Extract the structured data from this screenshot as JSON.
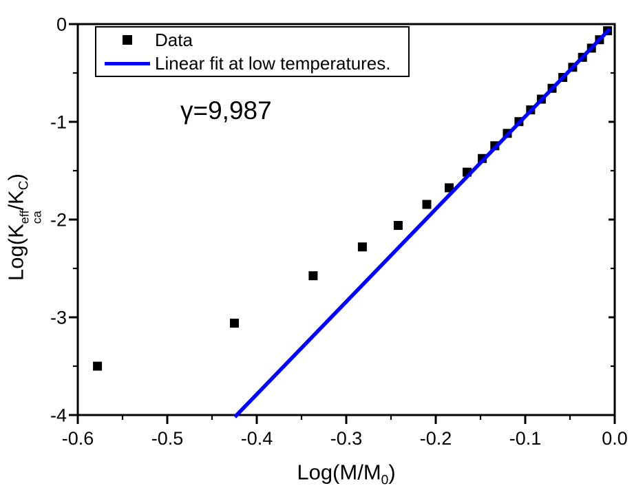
{
  "figure": {
    "background": "#ffffff",
    "frame_color": "#000000"
  },
  "chart_data": {
    "type": "scatter",
    "title": "",
    "xlabel": "Log(M/M0)",
    "ylabel": "Log(Kca^eff/KC)",
    "xlabel_parts": {
      "pre": "Log(M/M",
      "sub": "0",
      "post": ")"
    },
    "ylabel_parts": {
      "pre": "Log(K",
      "sup": "eff",
      "sub": "ca",
      "mid": "/K",
      "sub2": "C",
      "post": ")"
    },
    "xlim": [
      -0.6,
      0.0
    ],
    "ylim": [
      -4,
      0
    ],
    "grid": false,
    "x_ticks": {
      "major": [
        -0.6,
        -0.5,
        -0.4,
        -0.3,
        -0.2,
        -0.1,
        0.0
      ],
      "labels": [
        "-0.6",
        "-0.5",
        "-0.4",
        "-0.3",
        "-0.2",
        "-0.1",
        "0.0"
      ],
      "minor": [
        -0.55,
        -0.45,
        -0.35,
        -0.25,
        -0.15,
        -0.05
      ]
    },
    "y_ticks": {
      "major": [
        0,
        -1,
        -2,
        -3,
        -4
      ],
      "labels": [
        "0",
        "-1",
        "-2",
        "-3",
        "-4"
      ],
      "minor": [
        -0.5,
        -1.5,
        -2.5,
        -3.5
      ]
    },
    "series": [
      {
        "name": "Data",
        "type": "scatter",
        "marker": "square",
        "color": "#000000",
        "points": [
          [
            -0.578,
            -3.5
          ],
          [
            -0.425,
            -3.06
          ],
          [
            -0.337,
            -2.575
          ],
          [
            -0.282,
            -2.28
          ],
          [
            -0.242,
            -2.06
          ],
          [
            -0.21,
            -1.845
          ],
          [
            -0.185,
            -1.675
          ],
          [
            -0.165,
            -1.515
          ],
          [
            -0.148,
            -1.375
          ],
          [
            -0.134,
            -1.245
          ],
          [
            -0.12,
            -1.118
          ],
          [
            -0.107,
            -0.998
          ],
          [
            -0.094,
            -0.878
          ],
          [
            -0.082,
            -0.768
          ],
          [
            -0.07,
            -0.657
          ],
          [
            -0.058,
            -0.546
          ],
          [
            -0.047,
            -0.442
          ],
          [
            -0.036,
            -0.34
          ],
          [
            -0.026,
            -0.246
          ],
          [
            -0.017,
            -0.16
          ],
          [
            -0.008,
            -0.068
          ]
        ]
      },
      {
        "name": "Linear fit at low temperatures.",
        "type": "line",
        "color": "#0000ff",
        "slope": 9.49,
        "points": [
          [
            -0.4245,
            -4.02
          ],
          [
            -0.0054,
            -0.049
          ]
        ]
      }
    ],
    "legend": {
      "position": "top-left",
      "items": [
        {
          "label": "Data",
          "marker": "square",
          "color": "#000000"
        },
        {
          "label": "Linear fit at low temperatures.",
          "marker": "line",
          "color": "#0000ff"
        }
      ]
    },
    "annotation": {
      "text": "γ=9,987",
      "gamma_value": "9,987"
    }
  }
}
